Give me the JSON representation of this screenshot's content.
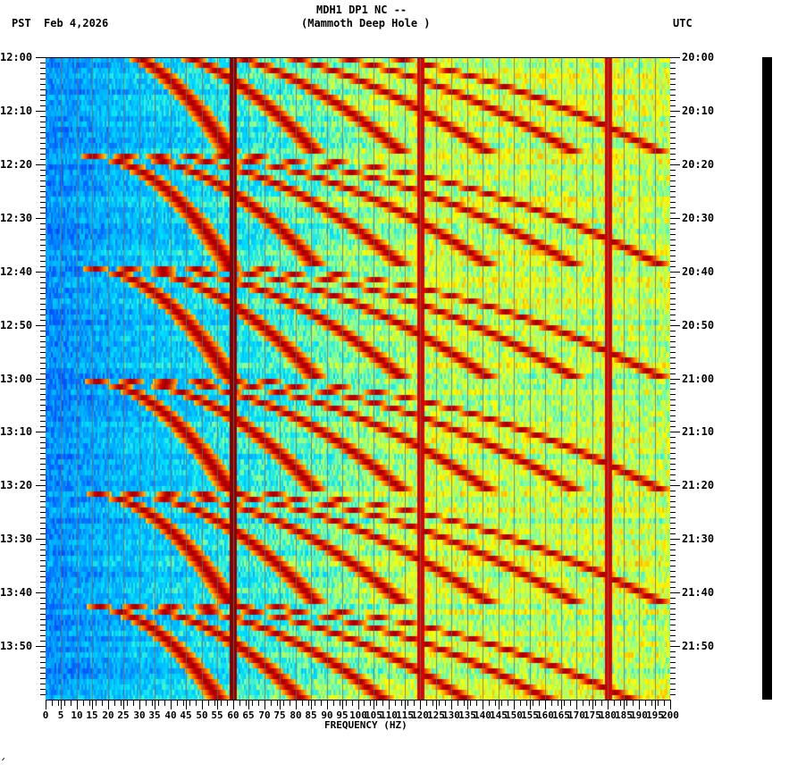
{
  "header": {
    "station": "MDH1 DP1 NC --",
    "location": "(Mammoth Deep Hole )",
    "left_tz": "PST",
    "date": "Feb 4,2026",
    "right_tz": "UTC"
  },
  "footer_mark": "ᐟ",
  "chart_data": {
    "type": "heatmap",
    "title": "MDH1 DP1 NC -- (Mammoth Deep Hole )",
    "subtitle": "Feb 4,2026",
    "xlabel": "FREQUENCY (HZ)",
    "ylabel_left": "PST",
    "ylabel_right": "UTC",
    "xlim": [
      0,
      200
    ],
    "x_ticks": [
      0,
      5,
      10,
      15,
      20,
      25,
      30,
      35,
      40,
      45,
      50,
      55,
      60,
      65,
      70,
      75,
      80,
      85,
      90,
      95,
      100,
      105,
      110,
      115,
      120,
      125,
      130,
      135,
      140,
      145,
      150,
      155,
      160,
      165,
      170,
      175,
      180,
      185,
      190,
      195,
      200
    ],
    "y_ticks_left": [
      "12:00",
      "12:10",
      "12:20",
      "12:30",
      "12:40",
      "12:50",
      "13:00",
      "13:10",
      "13:20",
      "13:30",
      "13:40",
      "13:50"
    ],
    "y_ticks_right": [
      "20:00",
      "20:10",
      "20:20",
      "20:30",
      "20:40",
      "20:50",
      "21:00",
      "21:10",
      "21:20",
      "21:30",
      "21:40",
      "21:50"
    ],
    "time_range_minutes": [
      0,
      120
    ],
    "colormap": [
      "#0050ff",
      "#00a0ff",
      "#00e0ff",
      "#80ffa0",
      "#ffff00",
      "#ff8000",
      "#d00000",
      "#800000"
    ],
    "persistent_lines_hz": [
      60,
      120,
      180
    ],
    "sweep_cycle_minutes": 21,
    "sweep_cycle_starts_min": [
      -3,
      18,
      39,
      60,
      81,
      102
    ],
    "notes": "Low energy (blue) below ~20 Hz, rising arc-shaped harmonic sweeps repeating roughly every 21 minutes, strong 60 Hz line, higher energy (yellow/green) above ~90 Hz"
  }
}
